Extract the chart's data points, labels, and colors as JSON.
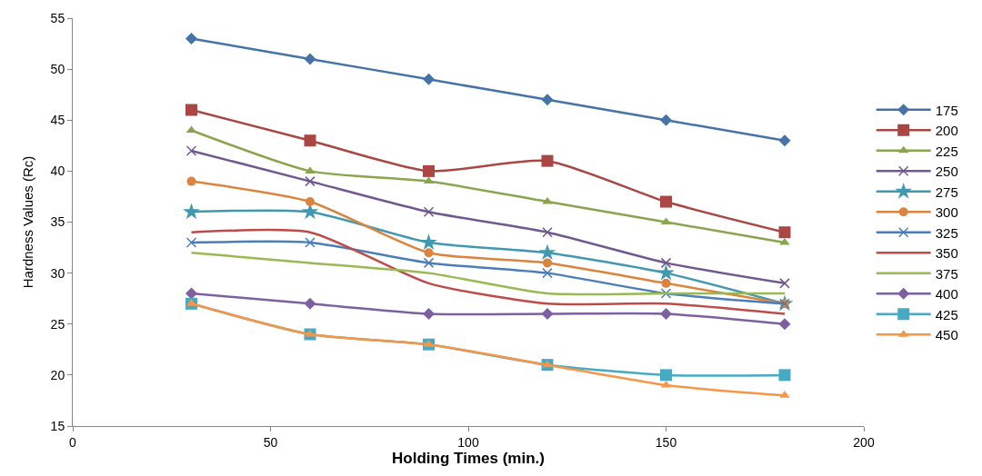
{
  "chart_data": {
    "type": "line",
    "xlabel": "Holding Times (min.)",
    "ylabel": "Hardness Values (Rc)",
    "x": [
      30,
      60,
      90,
      120,
      150,
      180
    ],
    "xlim": [
      0,
      200
    ],
    "xticks": [
      0,
      50,
      100,
      150,
      200
    ],
    "ylim": [
      15,
      55
    ],
    "yticks": [
      15,
      20,
      25,
      30,
      35,
      40,
      45,
      50,
      55
    ],
    "legend": "right",
    "series": [
      {
        "name": "175",
        "color": "#4572a7",
        "marker": "diamond",
        "values": [
          53,
          51,
          49,
          47,
          45,
          43
        ]
      },
      {
        "name": "200",
        "color": "#aa4643",
        "marker": "square",
        "values": [
          46,
          43,
          40,
          41,
          37,
          34
        ]
      },
      {
        "name": "225",
        "color": "#89a54e",
        "marker": "triangle",
        "values": [
          44,
          40,
          39,
          37,
          35,
          33
        ]
      },
      {
        "name": "250",
        "color": "#71588f",
        "marker": "cross",
        "values": [
          42,
          39,
          36,
          34,
          31,
          29
        ]
      },
      {
        "name": "275",
        "color": "#4198af",
        "marker": "star",
        "values": [
          36,
          36,
          33,
          32,
          30,
          27
        ]
      },
      {
        "name": "300",
        "color": "#db843d",
        "marker": "circle",
        "values": [
          39,
          37,
          32,
          31,
          29,
          27
        ]
      },
      {
        "name": "325",
        "color": "#4a7ebb",
        "marker": "cross",
        "values": [
          33,
          33,
          31,
          30,
          28,
          27
        ]
      },
      {
        "name": "350",
        "color": "#be4b48",
        "marker": "none",
        "values": [
          34,
          34,
          29,
          27,
          27,
          26
        ]
      },
      {
        "name": "375",
        "color": "#98b954",
        "marker": "none",
        "values": [
          32,
          31,
          30,
          28,
          28,
          28
        ]
      },
      {
        "name": "400",
        "color": "#7d60a0",
        "marker": "diamond",
        "values": [
          28,
          27,
          26,
          26,
          26,
          25
        ]
      },
      {
        "name": "425",
        "color": "#46aac5",
        "marker": "square",
        "values": [
          27,
          24,
          23,
          21,
          20,
          20
        ]
      },
      {
        "name": "450",
        "color": "#f79646",
        "marker": "triangle",
        "values": [
          27,
          24,
          23,
          21,
          19,
          18
        ]
      }
    ]
  }
}
